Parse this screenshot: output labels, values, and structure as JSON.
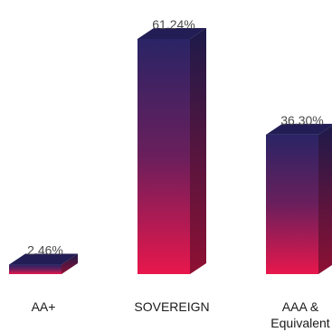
{
  "chart_data": {
    "type": "bar",
    "style": "3d-column",
    "categories": [
      "AA+",
      "SOVEREIGN",
      "AAA &\nEquivalent"
    ],
    "values": [
      2.46,
      61.24,
      36.3
    ],
    "data_labels": [
      "2.46%",
      "61.24%",
      "36.30%"
    ],
    "ylim": [
      0,
      61.24
    ],
    "grid": false,
    "legend": "none",
    "colors": {
      "gradient_top": "#2a2466",
      "gradient_mid": "#6a1f5c",
      "gradient_bottom": "#e8174c",
      "top_face": "#221e55",
      "side_top": "#1c1a4a",
      "side_bottom": "#8e1033"
    }
  }
}
